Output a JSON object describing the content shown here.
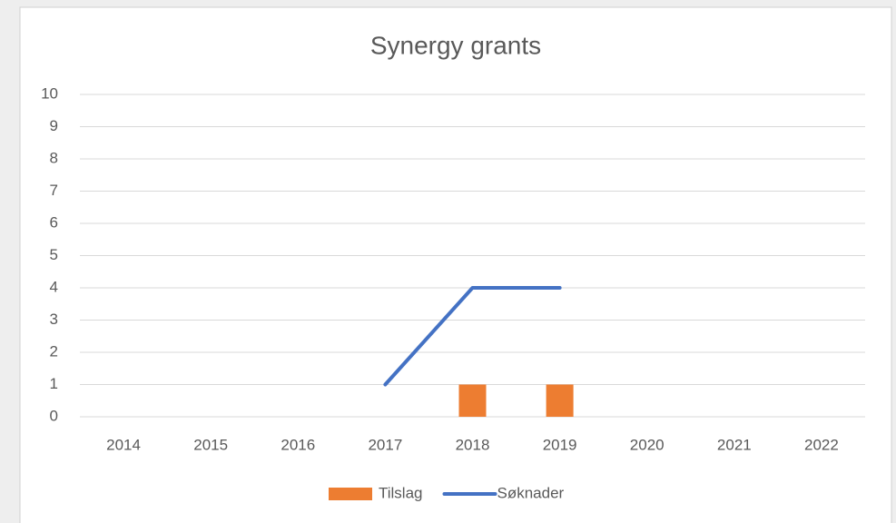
{
  "chart_data": {
    "type": "combo",
    "title": "Synergy grants",
    "categories": [
      "2014",
      "2015",
      "2016",
      "2017",
      "2018",
      "2019",
      "2020",
      "2021",
      "2022"
    ],
    "series": [
      {
        "name": "Tilslag",
        "type": "bar",
        "color": "#ed7d31",
        "values": [
          null,
          null,
          null,
          null,
          1,
          1,
          null,
          null,
          null
        ]
      },
      {
        "name": "Søknader",
        "type": "line",
        "color": "#4472c4",
        "values": [
          null,
          null,
          null,
          1,
          4,
          4,
          null,
          null,
          null
        ]
      }
    ],
    "ylim": [
      0,
      10
    ],
    "yticks": [
      0,
      1,
      2,
      3,
      4,
      5,
      6,
      7,
      8,
      9,
      10
    ],
    "grid": true,
    "legend": "bottom"
  }
}
